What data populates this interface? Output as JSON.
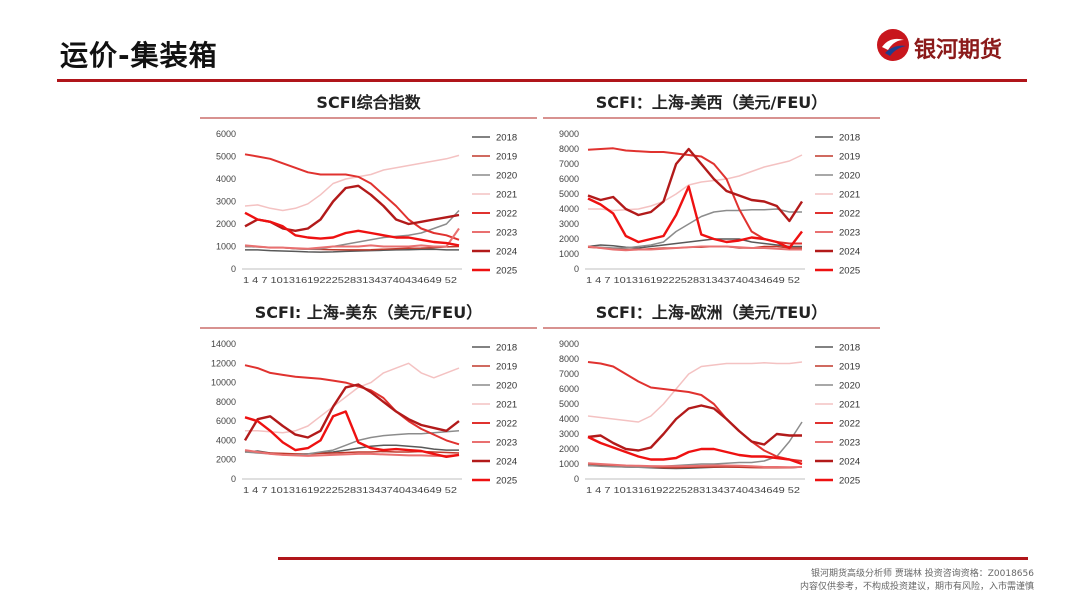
{
  "page": {
    "title": "运价-集装箱"
  },
  "logo": {
    "text": "银河期货"
  },
  "footer": {
    "line1": "银河期货高级分析师 贾瑞林 投资咨询资格：Z0018656",
    "line2": "内容仅供参考，不构成投资建议，期市有风险，入市需谨慎"
  },
  "colors": {
    "2018": "#595959",
    "2019": "#c0392b",
    "2020": "#8c8c8c",
    "2021": "#f4c2c2",
    "2022": "#e0322f",
    "2023": "#e97070",
    "2024": "#b21a1a",
    "2025": "#ee1111"
  },
  "chart_data": [
    {
      "type": "line",
      "title": "SCFI综合指数",
      "ylim": [
        0,
        6000
      ],
      "yticks": [
        "0",
        "1000",
        "2000",
        "3000",
        "4000",
        "5000",
        "6000"
      ],
      "xticks": [
        "1",
        "4",
        "7",
        "10",
        "13",
        "16",
        "19",
        "22",
        "25",
        "28",
        "31",
        "34",
        "37",
        "40",
        "43",
        "46",
        "49",
        "52"
      ],
      "xlabel_text": "1  4  7 1013161922252831343740434649 52",
      "legend": [
        "2018",
        "2019",
        "2020",
        "2021",
        "2022",
        "2023",
        "2024",
        "2025"
      ],
      "series": [
        {
          "name": "2018",
          "values": [
            850,
            850,
            820,
            800,
            780,
            760,
            750,
            760,
            780,
            800,
            820,
            830,
            850,
            860,
            870,
            880,
            850,
            850
          ]
        },
        {
          "name": "2019",
          "values": [
            1000,
            980,
            960,
            950,
            900,
            880,
            870,
            860,
            850,
            850,
            860,
            880,
            900,
            920,
            930,
            950,
            980,
            1000
          ]
        },
        {
          "name": "2020",
          "values": [
            1000,
            980,
            960,
            950,
            900,
            880,
            900,
            1000,
            1100,
            1200,
            1300,
            1400,
            1450,
            1500,
            1600,
            1800,
            2000,
            2600
          ]
        },
        {
          "name": "2021",
          "values": [
            2800,
            2850,
            2700,
            2600,
            2700,
            2900,
            3300,
            3800,
            4000,
            4100,
            4200,
            4400,
            4500,
            4600,
            4700,
            4800,
            4900,
            5050
          ]
        },
        {
          "name": "2022",
          "values": [
            5100,
            5000,
            4900,
            4700,
            4500,
            4300,
            4200,
            4200,
            4200,
            4100,
            3800,
            3300,
            2800,
            2200,
            1800,
            1600,
            1500,
            1300
          ]
        },
        {
          "name": "2023",
          "values": [
            1050,
            1000,
            950,
            950,
            920,
            900,
            950,
            1000,
            1000,
            1000,
            1050,
            1000,
            1000,
            1000,
            1050,
            1000,
            1000,
            1800
          ]
        },
        {
          "name": "2024",
          "values": [
            1900,
            2200,
            2100,
            1800,
            1700,
            1800,
            2200,
            3000,
            3600,
            3700,
            3300,
            2800,
            2200,
            2000,
            2100,
            2200,
            2300,
            2400
          ]
        },
        {
          "name": "2025",
          "values": [
            2500,
            2200,
            2100,
            1900,
            1500,
            1400,
            1350,
            1400,
            1600,
            1700,
            1600,
            1500,
            1400,
            1400,
            1300,
            1200,
            1150,
            1050
          ]
        }
      ]
    },
    {
      "type": "line",
      "title": "SCFI：上海-美西（美元/FEU）",
      "ylim": [
        0,
        9000
      ],
      "yticks": [
        "0",
        "1000",
        "2000",
        "3000",
        "4000",
        "5000",
        "6000",
        "7000",
        "8000",
        "9000"
      ],
      "xticks": [
        "1",
        "4",
        "7",
        "10",
        "13",
        "16",
        "19",
        "22",
        "25",
        "28",
        "31",
        "34",
        "37",
        "40",
        "43",
        "46",
        "49",
        "52"
      ],
      "xlabel_text": "1  4  7 1013161922252831343740434649 52",
      "legend": [
        "2018",
        "2019",
        "2020",
        "2021",
        "2022",
        "2023",
        "2024",
        "2025"
      ],
      "series": [
        {
          "name": "2018",
          "values": [
            1500,
            1600,
            1550,
            1450,
            1400,
            1500,
            1600,
            1700,
            1800,
            1900,
            2000,
            2000,
            2000,
            1800,
            1700,
            1600,
            1500,
            1500
          ]
        },
        {
          "name": "2019",
          "values": [
            1450,
            1400,
            1350,
            1300,
            1300,
            1350,
            1400,
            1400,
            1450,
            1450,
            1500,
            1500,
            1400,
            1400,
            1500,
            1500,
            1400,
            1400
          ]
        },
        {
          "name": "2020",
          "values": [
            1500,
            1450,
            1400,
            1400,
            1500,
            1600,
            1800,
            2500,
            3000,
            3500,
            3800,
            3900,
            3900,
            3950,
            3950,
            4000,
            3800,
            3800
          ]
        },
        {
          "name": "2021",
          "values": [
            4000,
            4000,
            3900,
            3950,
            4000,
            4200,
            4500,
            5000,
            5600,
            5800,
            5900,
            6000,
            6200,
            6500,
            6800,
            7000,
            7200,
            7600
          ]
        },
        {
          "name": "2022",
          "values": [
            7950,
            8000,
            8050,
            7900,
            7850,
            7800,
            7800,
            7700,
            7600,
            7500,
            7000,
            6000,
            4000,
            2500,
            2000,
            1800,
            1700,
            1700
          ]
        },
        {
          "name": "2023",
          "values": [
            1500,
            1400,
            1300,
            1250,
            1300,
            1300,
            1350,
            1400,
            1450,
            1500,
            1500,
            1500,
            1450,
            1400,
            1400,
            1350,
            1300,
            1300
          ]
        },
        {
          "name": "2024",
          "values": [
            4900,
            4600,
            4800,
            4000,
            3600,
            3800,
            4500,
            7000,
            8000,
            7000,
            6000,
            5200,
            4900,
            4600,
            4500,
            4200,
            3200,
            4500
          ]
        },
        {
          "name": "2025",
          "values": [
            4700,
            4300,
            3700,
            2200,
            1800,
            2000,
            2200,
            3600,
            5500,
            2300,
            2000,
            1800,
            1900,
            2100,
            2000,
            1800,
            1400,
            2500
          ]
        }
      ]
    },
    {
      "type": "line",
      "title": "SCFI: 上海-美东（美元/FEU）",
      "ylim": [
        0,
        14000
      ],
      "yticks": [
        "0",
        "2000",
        "4000",
        "6000",
        "8000",
        "10000",
        "12000",
        "14000"
      ],
      "xticks": [
        "1",
        "4",
        "7",
        "10",
        "13",
        "16",
        "19",
        "22",
        "25",
        "28",
        "31",
        "34",
        "37",
        "40",
        "43",
        "46",
        "49",
        "52"
      ],
      "xlabel_text": "1  4  7 1013161922252831343740434649 52",
      "legend": [
        "2018",
        "2019",
        "2020",
        "2021",
        "2022",
        "2023",
        "2024",
        "2025"
      ],
      "series": [
        {
          "name": "2018",
          "values": [
            2800,
            2900,
            2700,
            2600,
            2500,
            2600,
            2700,
            2800,
            3000,
            3200,
            3400,
            3500,
            3500,
            3400,
            3300,
            3100,
            3000,
            3000
          ]
        },
        {
          "name": "2019",
          "values": [
            2900,
            2800,
            2700,
            2650,
            2600,
            2600,
            2650,
            2700,
            2750,
            2800,
            2800,
            2850,
            2800,
            2800,
            2850,
            2800,
            2750,
            2700
          ]
        },
        {
          "name": "2020",
          "values": [
            2800,
            2700,
            2600,
            2500,
            2500,
            2600,
            2800,
            3000,
            3500,
            4000,
            4300,
            4500,
            4600,
            4700,
            4700,
            4800,
            4900,
            5000
          ]
        },
        {
          "name": "2021",
          "values": [
            5000,
            5000,
            4900,
            4800,
            5000,
            5500,
            6500,
            7500,
            8500,
            9500,
            10000,
            11000,
            11500,
            12000,
            11000,
            10500,
            11000,
            11500
          ]
        },
        {
          "name": "2022",
          "values": [
            11800,
            11500,
            11000,
            10800,
            10600,
            10500,
            10400,
            10200,
            10000,
            9600,
            9200,
            8400,
            7000,
            6000,
            5200,
            4600,
            4000,
            3600
          ]
        },
        {
          "name": "2023",
          "values": [
            3000,
            2800,
            2600,
            2500,
            2450,
            2400,
            2450,
            2500,
            2550,
            2600,
            2600,
            2550,
            2500,
            2450,
            2450,
            2400,
            2400,
            2500
          ]
        },
        {
          "name": "2024",
          "values": [
            4000,
            6200,
            6500,
            5500,
            4600,
            4300,
            5000,
            7500,
            9500,
            9800,
            9000,
            8000,
            7000,
            6200,
            5600,
            5300,
            5000,
            6000
          ]
        },
        {
          "name": "2025",
          "values": [
            6400,
            6000,
            5000,
            3800,
            3000,
            3200,
            4000,
            6500,
            7000,
            3800,
            3200,
            3000,
            3100,
            3000,
            2900,
            2600,
            2300,
            2500
          ]
        }
      ]
    },
    {
      "type": "line",
      "title": "SCFI：上海-欧洲（美元/TEU）",
      "ylim": [
        0,
        9000
      ],
      "yticks": [
        "0",
        "1000",
        "2000",
        "3000",
        "4000",
        "5000",
        "6000",
        "7000",
        "8000",
        "9000"
      ],
      "xticks": [
        "1",
        "4",
        "7",
        "10",
        "13",
        "16",
        "19",
        "22",
        "25",
        "28",
        "31",
        "34",
        "37",
        "40",
        "43",
        "46",
        "49",
        "52"
      ],
      "xlabel_text": "1  4  7 1013161922252831343740434649 52",
      "legend": [
        "2018",
        "2019",
        "2020",
        "2021",
        "2022",
        "2023",
        "2024",
        "2025"
      ],
      "series": [
        {
          "name": "2018",
          "values": [
            900,
            880,
            850,
            800,
            780,
            750,
            720,
            700,
            720,
            750,
            780,
            800,
            800,
            780,
            760,
            750,
            750,
            800
          ]
        },
        {
          "name": "2019",
          "values": [
            1000,
            950,
            900,
            850,
            800,
            780,
            760,
            750,
            780,
            800,
            800,
            800,
            780,
            760,
            750,
            750,
            750,
            800
          ]
        },
        {
          "name": "2020",
          "values": [
            900,
            850,
            820,
            800,
            780,
            800,
            850,
            900,
            950,
            1000,
            1000,
            1050,
            1100,
            1100,
            1200,
            1500,
            2500,
            3800
          ]
        },
        {
          "name": "2021",
          "values": [
            4200,
            4100,
            4000,
            3900,
            3800,
            4200,
            5000,
            6000,
            7000,
            7500,
            7600,
            7700,
            7700,
            7700,
            7750,
            7700,
            7700,
            7800
          ]
        },
        {
          "name": "2022",
          "values": [
            7800,
            7700,
            7500,
            7000,
            6500,
            6100,
            6000,
            5900,
            5800,
            5600,
            5000,
            4000,
            3200,
            2500,
            1900,
            1500,
            1300,
            1200
          ]
        },
        {
          "name": "2023",
          "values": [
            1050,
            1000,
            950,
            900,
            880,
            860,
            850,
            850,
            860,
            880,
            900,
            900,
            880,
            850,
            800,
            800,
            780,
            800
          ]
        },
        {
          "name": "2024",
          "values": [
            2800,
            2900,
            2400,
            2000,
            1900,
            2100,
            3000,
            4000,
            4700,
            4900,
            4700,
            4000,
            3200,
            2500,
            2300,
            3000,
            2900,
            2900
          ]
        },
        {
          "name": "2025",
          "values": [
            2800,
            2400,
            2100,
            1800,
            1500,
            1300,
            1300,
            1400,
            1800,
            2000,
            2000,
            1800,
            1600,
            1500,
            1500,
            1400,
            1300,
            1000
          ]
        }
      ]
    }
  ]
}
